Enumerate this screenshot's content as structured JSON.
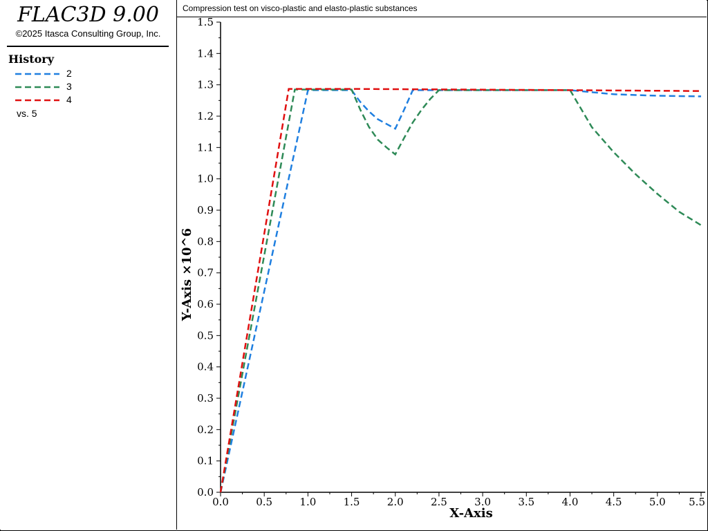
{
  "app": {
    "title": "FLAC3D 9.00",
    "copyright": "©2025 Itasca Consulting Group, Inc."
  },
  "legend": {
    "heading": "History",
    "items": [
      {
        "label": "2",
        "color": "#1f7fe0"
      },
      {
        "label": "3",
        "color": "#2e8a57"
      },
      {
        "label": "4",
        "color": "#e01010"
      }
    ],
    "vs_label": "vs. 5"
  },
  "plot": {
    "title": "Compression test on visco-plastic and elasto-plastic substances"
  },
  "chart_data": {
    "type": "line",
    "xlabel": "X-Axis",
    "ylabel": "Y-Axis ×10^6",
    "xlim": [
      0,
      5.5
    ],
    "ylim": [
      0,
      1.5
    ],
    "x_ticks": [
      "0.0",
      "0.5",
      "1.0",
      "1.5",
      "2.0",
      "2.5",
      "3.0",
      "3.5",
      "4.0",
      "4.5",
      "5.0",
      "5.5"
    ],
    "y_ticks": [
      "0.0",
      "0.1",
      "0.2",
      "0.3",
      "0.4",
      "0.5",
      "0.6",
      "0.7",
      "0.8",
      "0.9",
      "1.0",
      "1.1",
      "1.2",
      "1.3",
      "1.4",
      "1.5"
    ],
    "grid": false,
    "series": [
      {
        "name": "2",
        "color": "#1f7fe0",
        "points": [
          [
            0,
            0
          ],
          [
            1.0,
            1.283
          ],
          [
            1.5,
            1.283
          ],
          [
            1.6,
            1.245
          ],
          [
            1.7,
            1.215
          ],
          [
            1.8,
            1.19
          ],
          [
            1.9,
            1.175
          ],
          [
            2.0,
            1.16
          ],
          [
            2.1,
            1.22
          ],
          [
            2.2,
            1.283
          ],
          [
            4.0,
            1.283
          ],
          [
            4.5,
            1.27
          ],
          [
            5.0,
            1.265
          ],
          [
            5.5,
            1.263
          ]
        ]
      },
      {
        "name": "3",
        "color": "#2e8a57",
        "points": [
          [
            0,
            0
          ],
          [
            0.85,
            1.285
          ],
          [
            1.5,
            1.285
          ],
          [
            1.6,
            1.22
          ],
          [
            1.7,
            1.165
          ],
          [
            1.8,
            1.125
          ],
          [
            1.9,
            1.1
          ],
          [
            2.0,
            1.078
          ],
          [
            2.1,
            1.13
          ],
          [
            2.2,
            1.18
          ],
          [
            2.3,
            1.22
          ],
          [
            2.4,
            1.255
          ],
          [
            2.5,
            1.283
          ],
          [
            4.0,
            1.283
          ],
          [
            4.25,
            1.165
          ],
          [
            4.5,
            1.085
          ],
          [
            4.75,
            1.015
          ],
          [
            5.0,
            0.952
          ],
          [
            5.25,
            0.895
          ],
          [
            5.5,
            0.852
          ]
        ]
      },
      {
        "name": "4",
        "color": "#e01010",
        "points": [
          [
            0,
            0
          ],
          [
            0.78,
            1.287
          ],
          [
            1.5,
            1.287
          ],
          [
            4.0,
            1.283
          ],
          [
            5.5,
            1.28
          ]
        ]
      }
    ]
  }
}
